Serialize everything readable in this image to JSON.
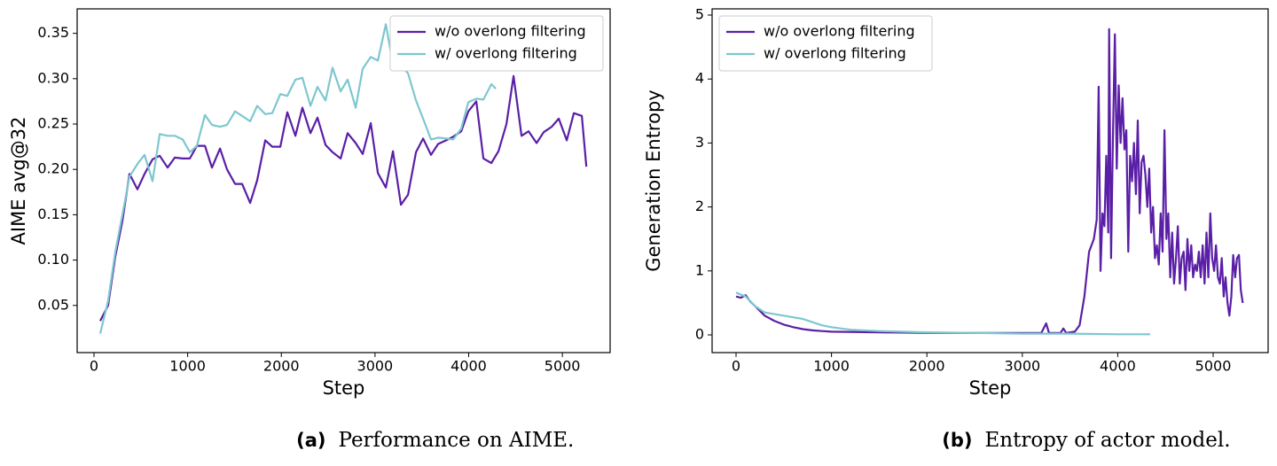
{
  "chart_data": [
    {
      "type": "line",
      "caption_label": "(a)",
      "caption": "Performance on AIME.",
      "xlabel": "Step",
      "ylabel": "AIME avg@32",
      "xlim": [
        -180,
        5510
      ],
      "ylim": [
        -0.002,
        0.377
      ],
      "xticks": [
        0,
        1000,
        2000,
        3000,
        4000,
        5000
      ],
      "yticks": [
        0.05,
        {
          "value": 0.1,
          "label": "0.10"
        },
        0.15,
        {
          "value": 0.2,
          "label": "0.20"
        },
        0.25,
        {
          "value": 0.3,
          "label": "0.30"
        },
        0.35
      ],
      "legend": "upper right",
      "series": [
        {
          "name": "w/o overlong filtering",
          "color": "#5a1fa6",
          "x": [
            66,
            150,
            227,
            303,
            379,
            464,
            540,
            625,
            701,
            786,
            862,
            947,
            1023,
            1098,
            1184,
            1259,
            1345,
            1420,
            1506,
            1581,
            1667,
            1742,
            1828,
            1903,
            1989,
            2064,
            2150,
            2225,
            2311,
            2386,
            2472,
            2547,
            2633,
            2708,
            2794,
            2869,
            2955,
            3030,
            3116,
            3191,
            3277,
            3352,
            3438,
            3513,
            3598,
            3674,
            3759,
            3835,
            3920,
            3996,
            4081,
            4157,
            4242,
            4318,
            4403,
            4479,
            4564,
            4640,
            4725,
            4801,
            4886,
            4962,
            5047,
            5123,
            5208,
            5256
          ],
          "values": [
            0.033,
            0.05,
            0.104,
            0.143,
            0.195,
            0.178,
            0.195,
            0.211,
            0.215,
            0.202,
            0.213,
            0.212,
            0.212,
            0.226,
            0.226,
            0.202,
            0.223,
            0.2,
            0.184,
            0.184,
            0.163,
            0.188,
            0.232,
            0.225,
            0.225,
            0.263,
            0.237,
            0.268,
            0.24,
            0.257,
            0.227,
            0.219,
            0.212,
            0.24,
            0.229,
            0.217,
            0.251,
            0.196,
            0.18,
            0.22,
            0.161,
            0.172,
            0.219,
            0.234,
            0.216,
            0.228,
            0.232,
            0.236,
            0.242,
            0.264,
            0.275,
            0.212,
            0.207,
            0.22,
            0.25,
            0.303,
            0.237,
            0.242,
            0.229,
            0.241,
            0.247,
            0.256,
            0.232,
            0.262,
            0.259,
            0.203
          ]
        },
        {
          "name": "w/ overlong filtering",
          "color": "#7ec7cf",
          "x": [
            66,
            150,
            227,
            303,
            379,
            464,
            540,
            625,
            701,
            786,
            862,
            947,
            1023,
            1098,
            1184,
            1259,
            1345,
            1420,
            1506,
            1581,
            1667,
            1742,
            1828,
            1903,
            1989,
            2064,
            2150,
            2225,
            2311,
            2386,
            2472,
            2547,
            2633,
            2708,
            2794,
            2869,
            2955,
            3030,
            3116,
            3191,
            3277,
            3352,
            3438,
            3513,
            3598,
            3674,
            3759,
            3835,
            3920,
            3996,
            4081,
            4157,
            4242,
            4290
          ],
          "values": [
            0.019,
            0.055,
            0.109,
            0.15,
            0.192,
            0.206,
            0.216,
            0.187,
            0.239,
            0.237,
            0.237,
            0.233,
            0.219,
            0.226,
            0.26,
            0.249,
            0.247,
            0.249,
            0.264,
            0.259,
            0.253,
            0.27,
            0.261,
            0.262,
            0.283,
            0.281,
            0.299,
            0.301,
            0.27,
            0.291,
            0.276,
            0.312,
            0.286,
            0.299,
            0.268,
            0.311,
            0.324,
            0.32,
            0.36,
            0.316,
            0.314,
            0.306,
            0.276,
            0.256,
            0.233,
            0.235,
            0.234,
            0.233,
            0.245,
            0.274,
            0.278,
            0.277,
            0.294,
            0.289
          ]
        }
      ]
    },
    {
      "type": "line",
      "caption_label": "(b)",
      "caption": "Entropy of actor model.",
      "xlabel": "Step",
      "ylabel": "Generation Entropy",
      "xlim": [
        -251,
        5576
      ],
      "ylim": [
        -0.277,
        5.097
      ],
      "xticks": [
        0,
        1000,
        2000,
        3000,
        4000,
        5000
      ],
      "yticks": [
        0,
        1,
        2,
        3,
        4,
        5
      ],
      "legend": "upper left",
      "series": [
        {
          "name": "w/o overlong filtering",
          "color": "#5a1fa6",
          "x": [
            0,
            50,
            100,
            150,
            200,
            300,
            400,
            500,
            600,
            700,
            800,
            900,
            1000,
            1500,
            2000,
            2500,
            3000,
            3200,
            3250,
            3280,
            3400,
            3430,
            3460,
            3550,
            3600,
            3650,
            3700,
            3750,
            3780,
            3800,
            3820,
            3840,
            3860,
            3880,
            3900,
            3910,
            3930,
            3950,
            3970,
            3990,
            4010,
            4030,
            4050,
            4070,
            4090,
            4110,
            4130,
            4150,
            4170,
            4190,
            4210,
            4230,
            4250,
            4270,
            4290,
            4310,
            4330,
            4350,
            4370,
            4390,
            4410,
            4430,
            4450,
            4470,
            4490,
            4510,
            4530,
            4550,
            4570,
            4590,
            4610,
            4630,
            4650,
            4670,
            4690,
            4710,
            4730,
            4750,
            4770,
            4790,
            4810,
            4830,
            4850,
            4870,
            4890,
            4910,
            4930,
            4950,
            4970,
            4990,
            5010,
            5030,
            5050,
            5070,
            5090,
            5110,
            5130,
            5150,
            5170,
            5190,
            5210,
            5230,
            5250,
            5270,
            5290,
            5310
          ],
          "values": [
            0.6,
            0.58,
            0.62,
            0.52,
            0.45,
            0.3,
            0.22,
            0.16,
            0.12,
            0.09,
            0.07,
            0.06,
            0.05,
            0.04,
            0.03,
            0.03,
            0.03,
            0.03,
            0.18,
            0.03,
            0.03,
            0.1,
            0.03,
            0.05,
            0.15,
            0.6,
            1.3,
            1.5,
            1.8,
            3.88,
            1.0,
            1.9,
            1.7,
            2.8,
            1.6,
            4.78,
            1.2,
            3.1,
            4.7,
            2.6,
            3.9,
            3.0,
            3.7,
            2.9,
            3.2,
            1.3,
            2.8,
            2.4,
            3.0,
            2.2,
            3.35,
            1.9,
            2.7,
            2.8,
            2.5,
            2.0,
            2.6,
            1.6,
            2.0,
            1.2,
            1.4,
            1.1,
            1.9,
            1.3,
            3.2,
            1.5,
            1.9,
            0.9,
            1.6,
            0.8,
            1.2,
            1.7,
            0.8,
            1.2,
            1.3,
            0.7,
            1.5,
            1.0,
            1.4,
            0.9,
            1.1,
            1.0,
            1.3,
            0.9,
            1.4,
            0.8,
            1.6,
            0.9,
            1.9,
            1.2,
            1.0,
            1.4,
            0.9,
            0.8,
            1.2,
            0.6,
            0.9,
            0.5,
            0.3,
            0.6,
            1.25,
            0.9,
            1.2,
            1.25,
            0.7,
            0.5
          ]
        },
        {
          "name": "w/ overlong filtering",
          "color": "#7ec7cf",
          "x": [
            0,
            100,
            200,
            300,
            500,
            700,
            900,
            1000,
            1200,
            1500,
            2000,
            2500,
            3000,
            3500,
            4000,
            4340
          ],
          "values": [
            0.66,
            0.6,
            0.45,
            0.35,
            0.3,
            0.25,
            0.15,
            0.12,
            0.08,
            0.06,
            0.04,
            0.03,
            0.02,
            0.02,
            0.01,
            0.01
          ]
        }
      ]
    }
  ]
}
